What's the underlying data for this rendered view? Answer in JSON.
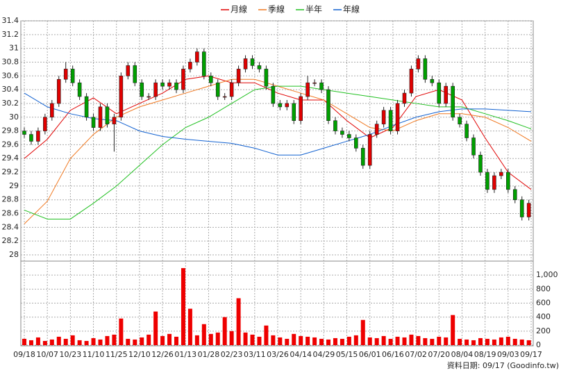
{
  "chart_data": {
    "type": "candlestick",
    "xlim": [
      0,
      220
    ],
    "xticks": [
      {
        "value": 0,
        "label": "09/18"
      },
      {
        "value": 10,
        "label": "10/07"
      },
      {
        "value": 20,
        "label": "10/23"
      },
      {
        "value": 30,
        "label": "11/10"
      },
      {
        "value": 40,
        "label": "11/25"
      },
      {
        "value": 50,
        "label": "12/10"
      },
      {
        "value": 60,
        "label": "12/26"
      },
      {
        "value": 70,
        "label": "01/13"
      },
      {
        "value": 80,
        "label": "01/28"
      },
      {
        "value": 90,
        "label": "02/23"
      },
      {
        "value": 100,
        "label": "03/11"
      },
      {
        "value": 110,
        "label": "03/26"
      },
      {
        "value": 120,
        "label": "04/14"
      },
      {
        "value": 130,
        "label": "04/29"
      },
      {
        "value": 140,
        "label": "05/15"
      },
      {
        "value": 150,
        "label": "06/01"
      },
      {
        "value": 160,
        "label": "06/16"
      },
      {
        "value": 170,
        "label": "07/02"
      },
      {
        "value": 180,
        "label": "07/20"
      },
      {
        "value": 190,
        "label": "08/04"
      },
      {
        "value": 200,
        "label": "08/19"
      },
      {
        "value": 210,
        "label": "09/03"
      },
      {
        "value": 220,
        "label": "09/17"
      }
    ],
    "ylim": [
      28,
      31.4
    ],
    "yticks": [
      28,
      28.2,
      28.4,
      28.6,
      28.8,
      29,
      29.2,
      29.4,
      29.6,
      29.8,
      30,
      30.2,
      30.4,
      30.6,
      30.8,
      31,
      31.2,
      31.4
    ],
    "volume_lim": [
      0,
      1200
    ],
    "volume_ticks": [
      0,
      200,
      400,
      600,
      800,
      {
        "value": 1000,
        "label": "1,000"
      }
    ],
    "grid": true,
    "up_color": "#e00000",
    "down_color": "#00a000",
    "volume_color": "#ee0000",
    "x": [
      0,
      3,
      6,
      9,
      12,
      15,
      18,
      21,
      24,
      27,
      30,
      33,
      36,
      39,
      42,
      45,
      48,
      51,
      54,
      57,
      60,
      63,
      66,
      69,
      72,
      75,
      78,
      81,
      84,
      87,
      90,
      93,
      96,
      99,
      102,
      105,
      108,
      111,
      114,
      117,
      120,
      123,
      126,
      129,
      132,
      135,
      138,
      141,
      144,
      147,
      150,
      153,
      156,
      159,
      162,
      165,
      168,
      171,
      174,
      177,
      180,
      183,
      186,
      189,
      192,
      195,
      198,
      201,
      204,
      207,
      210,
      213,
      216,
      219
    ],
    "open": [
      29.8,
      29.75,
      29.65,
      29.8,
      30.0,
      30.2,
      30.55,
      30.7,
      30.5,
      30.3,
      30.0,
      29.85,
      30.15,
      29.9,
      30.0,
      30.6,
      30.75,
      30.5,
      30.3,
      30.3,
      30.5,
      30.45,
      30.5,
      30.4,
      30.7,
      30.8,
      30.95,
      30.6,
      30.5,
      30.3,
      30.3,
      30.5,
      30.7,
      30.85,
      30.75,
      30.7,
      30.45,
      30.2,
      30.15,
      30.2,
      29.95,
      30.3,
      30.5,
      30.5,
      30.4,
      29.95,
      29.8,
      29.75,
      29.7,
      29.55,
      29.3,
      29.75,
      29.9,
      30.1,
      29.8,
      30.2,
      30.35,
      30.7,
      30.85,
      30.55,
      30.5,
      30.2,
      30.45,
      30.0,
      29.9,
      29.7,
      29.45,
      29.2,
      28.95,
      29.15,
      29.2,
      28.95,
      28.8,
      28.55
    ],
    "high": [
      29.85,
      29.8,
      29.85,
      30.05,
      30.25,
      30.6,
      30.8,
      30.75,
      30.55,
      30.35,
      30.05,
      30.2,
      30.2,
      30.05,
      30.65,
      30.8,
      30.8,
      30.55,
      30.35,
      30.55,
      30.55,
      30.55,
      30.55,
      30.75,
      30.85,
      31.0,
      31.0,
      30.65,
      30.55,
      30.35,
      30.55,
      30.75,
      30.9,
      30.9,
      30.8,
      30.75,
      30.5,
      30.25,
      30.25,
      30.25,
      30.35,
      30.6,
      30.55,
      30.55,
      30.45,
      30.0,
      29.85,
      29.8,
      29.75,
      29.6,
      29.8,
      29.95,
      30.15,
      30.15,
      30.25,
      30.4,
      30.75,
      30.9,
      30.9,
      30.6,
      30.55,
      30.5,
      30.5,
      30.05,
      29.95,
      29.75,
      29.5,
      29.25,
      29.2,
      29.25,
      29.25,
      29.0,
      28.85,
      28.8
    ],
    "low": [
      29.7,
      29.6,
      29.6,
      29.75,
      29.95,
      30.15,
      30.5,
      30.45,
      30.25,
      29.95,
      29.8,
      29.8,
      29.85,
      29.5,
      29.95,
      30.55,
      30.45,
      30.25,
      30.25,
      30.25,
      30.4,
      30.4,
      30.35,
      30.35,
      30.65,
      30.75,
      30.55,
      30.45,
      30.25,
      30.25,
      30.25,
      30.45,
      30.65,
      30.7,
      30.65,
      30.4,
      30.15,
      30.1,
      30.1,
      29.9,
      29.9,
      30.25,
      30.45,
      30.35,
      29.9,
      29.75,
      29.7,
      29.65,
      29.5,
      29.25,
      29.25,
      29.7,
      29.85,
      29.75,
      29.75,
      30.15,
      30.3,
      30.65,
      30.5,
      30.45,
      30.15,
      30.15,
      29.95,
      29.85,
      29.65,
      29.4,
      29.15,
      28.9,
      28.9,
      29.1,
      28.9,
      28.75,
      28.5,
      28.5
    ],
    "close": [
      29.75,
      29.65,
      29.8,
      30.0,
      30.2,
      30.55,
      30.7,
      30.5,
      30.3,
      30.0,
      29.85,
      30.15,
      29.9,
      30.0,
      30.6,
      30.75,
      30.5,
      30.3,
      30.3,
      30.5,
      30.45,
      30.5,
      30.4,
      30.7,
      30.8,
      30.95,
      30.6,
      30.5,
      30.3,
      30.3,
      30.5,
      30.7,
      30.85,
      30.75,
      30.7,
      30.45,
      30.2,
      30.15,
      30.2,
      29.95,
      30.3,
      30.5,
      30.5,
      30.4,
      29.95,
      29.8,
      29.75,
      29.7,
      29.55,
      29.3,
      29.75,
      29.9,
      30.1,
      29.8,
      30.2,
      30.35,
      30.7,
      30.85,
      30.55,
      30.5,
      30.2,
      30.45,
      30.0,
      29.9,
      29.7,
      29.45,
      29.2,
      28.95,
      29.15,
      29.2,
      28.95,
      28.8,
      28.55,
      28.75
    ],
    "volume": [
      90,
      70,
      110,
      60,
      80,
      120,
      90,
      140,
      70,
      60,
      100,
      80,
      130,
      150,
      380,
      90,
      80,
      110,
      150,
      480,
      130,
      160,
      120,
      1100,
      520,
      140,
      300,
      160,
      180,
      400,
      200,
      670,
      180,
      150,
      120,
      280,
      140,
      110,
      90,
      160,
      130,
      120,
      110,
      90,
      80,
      100,
      90,
      120,
      140,
      360,
      110,
      100,
      130,
      90,
      120,
      110,
      150,
      130,
      100,
      90,
      120,
      110,
      430,
      90,
      80,
      70,
      100,
      90,
      80,
      110,
      120,
      90,
      80,
      70
    ],
    "line_x": [
      0,
      10,
      20,
      30,
      40,
      50,
      60,
      70,
      80,
      90,
      100,
      110,
      120,
      130,
      140,
      150,
      160,
      170,
      180,
      190,
      200,
      210,
      220
    ],
    "lines": [
      {
        "name": "月線",
        "color": "#e00000",
        "values": [
          29.4,
          29.68,
          30.1,
          30.28,
          30.05,
          30.2,
          30.35,
          30.55,
          30.6,
          30.5,
          30.5,
          30.35,
          30.25,
          30.25,
          29.95,
          29.7,
          29.85,
          30.3,
          30.4,
          30.25,
          29.7,
          29.2,
          28.95
        ]
      },
      {
        "name": "季線",
        "color": "#f07820",
        "values": [
          28.45,
          28.78,
          29.4,
          29.75,
          30.0,
          30.15,
          30.25,
          30.35,
          30.45,
          30.55,
          30.55,
          30.45,
          30.35,
          30.25,
          30.05,
          29.85,
          29.8,
          29.95,
          30.05,
          30.05,
          30.0,
          29.85,
          29.65
        ]
      },
      {
        "name": "半年",
        "color": "#20c020",
        "values": [
          28.65,
          28.52,
          28.52,
          28.75,
          29.0,
          29.3,
          29.6,
          29.85,
          30.0,
          30.2,
          30.4,
          30.45,
          30.45,
          30.4,
          30.35,
          30.3,
          30.25,
          30.2,
          30.15,
          30.15,
          30.05,
          29.95,
          29.83
        ]
      },
      {
        "name": "年線",
        "color": "#1060d0",
        "values": [
          30.35,
          30.15,
          30.05,
          29.98,
          29.95,
          29.8,
          29.72,
          29.68,
          29.65,
          29.62,
          29.55,
          29.45,
          29.45,
          29.55,
          29.65,
          29.75,
          29.88,
          30.0,
          30.08,
          30.12,
          30.12,
          30.1,
          30.08
        ]
      }
    ],
    "footnote": "資料日期: 09/17 (Goodinfo.tw)"
  }
}
